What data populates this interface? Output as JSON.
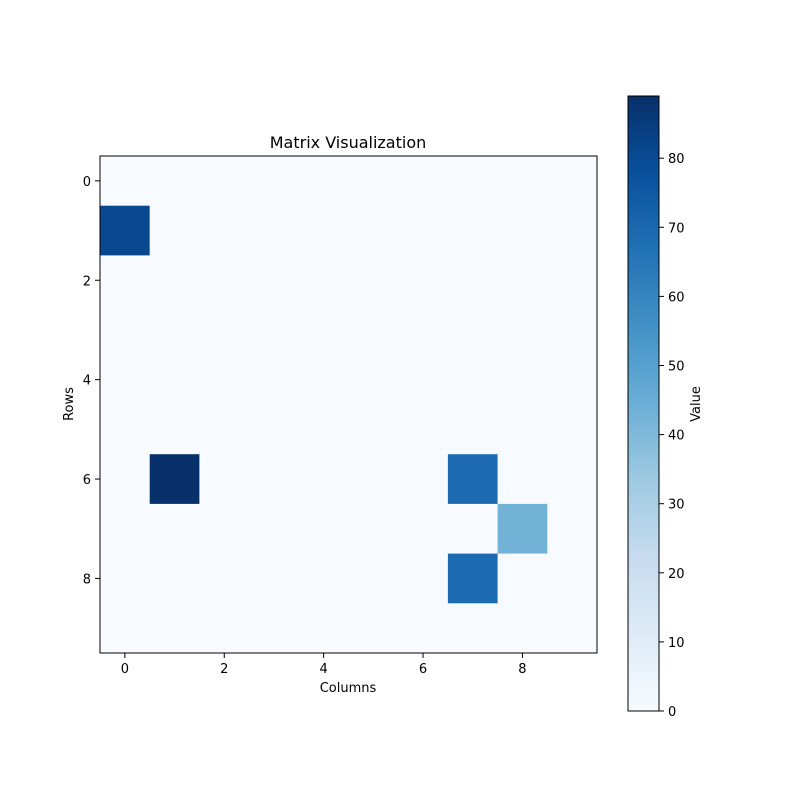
{
  "chart_data": {
    "type": "heatmap",
    "title": "Matrix Visualization",
    "xlabel": "Columns",
    "ylabel": "Rows",
    "rows": 10,
    "cols": 10,
    "x_ticks": [
      0,
      2,
      4,
      6,
      8
    ],
    "y_ticks": [
      0,
      2,
      4,
      6,
      8
    ],
    "values": [
      [
        0,
        0,
        0,
        0,
        0,
        0,
        0,
        0,
        0,
        0
      ],
      [
        81,
        0,
        0,
        0,
        0,
        0,
        0,
        0,
        0,
        0
      ],
      [
        0,
        0,
        0,
        0,
        0,
        0,
        0,
        0,
        0,
        0
      ],
      [
        0,
        0,
        0,
        0,
        0,
        0,
        0,
        0,
        0,
        0
      ],
      [
        0,
        0,
        0,
        0,
        0,
        0,
        0,
        0,
        0,
        0
      ],
      [
        0,
        0,
        0,
        0,
        0,
        0,
        0,
        0,
        0,
        0
      ],
      [
        0,
        89,
        0,
        0,
        0,
        0,
        0,
        69,
        0,
        0
      ],
      [
        0,
        0,
        0,
        0,
        0,
        0,
        0,
        0,
        43,
        0
      ],
      [
        0,
        0,
        0,
        0,
        0,
        0,
        0,
        69,
        0,
        0
      ],
      [
        0,
        0,
        0,
        0,
        0,
        0,
        0,
        0,
        0,
        0
      ]
    ],
    "colormap": "Blues",
    "colorbar": {
      "label": "Value",
      "min": 0,
      "max": 89,
      "ticks": [
        0,
        10,
        20,
        30,
        40,
        50,
        60,
        70,
        80
      ]
    }
  }
}
